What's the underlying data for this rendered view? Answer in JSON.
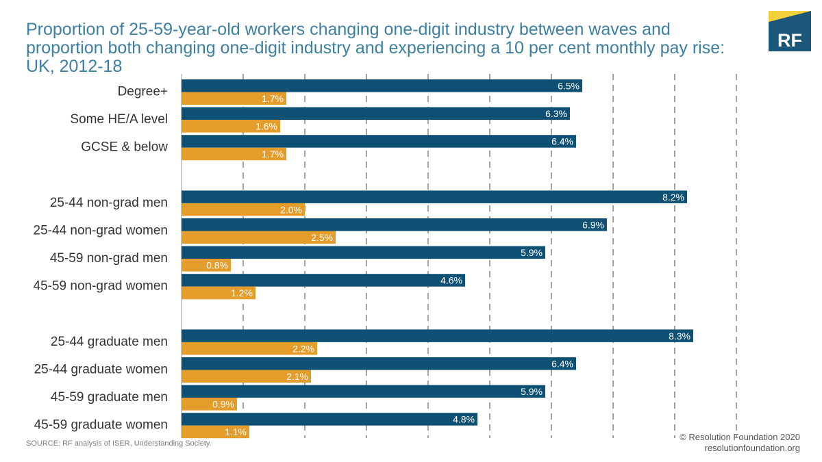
{
  "title_lines": [
    "Proportion of 25-59-year-old workers changing one-digit industry between waves and",
    "proportion both changing one-digit industry and experiencing a 10 per cent monthly pay rise:",
    "UK, 2012-18"
  ],
  "logo": {
    "text": "RF",
    "colors": {
      "teal": "#1b5778",
      "yellow": "#f2d03b"
    }
  },
  "source": "SOURCE: RF analysis of ISER, Understanding Society.",
  "credit": [
    "© Resolution Foundation 2020",
    "resolutionfoundation.org"
  ],
  "colors": {
    "title": "#3b7fa3",
    "series_1": "#0f5174",
    "series_2": "#e49c2a",
    "grid": "#8c8c8c",
    "axis": "#bbbbbb"
  },
  "chart_data": {
    "type": "bar",
    "orientation": "horizontal",
    "categories": [
      "Degree+",
      "Some HE/A level",
      "GCSE & below",
      "25-44 non-grad men",
      "25-44 non-grad women",
      "45-59 non-grad men",
      "45-59 non-grad women",
      "25-44 graduate men",
      "25-44 graduate women",
      "45-59 graduate men",
      "45-59 graduate women"
    ],
    "groups": [
      3,
      4,
      4
    ],
    "series": [
      {
        "values": [
          6.5,
          6.3,
          6.4,
          8.2,
          6.9,
          5.9,
          4.6,
          8.3,
          6.4,
          5.9,
          4.8
        ],
        "labels": [
          "6.5%",
          "6.3%",
          "6.4%",
          "8.2%",
          "6.9%",
          "5.9%",
          "4.6%",
          "8.3%",
          "6.4%",
          "5.9%",
          "4.8%"
        ]
      },
      {
        "values": [
          1.7,
          1.6,
          1.7,
          2.0,
          2.5,
          0.8,
          1.2,
          2.2,
          2.1,
          0.9,
          1.1
        ],
        "labels": [
          "1.7%",
          "1.6%",
          "1.7%",
          "2.0%",
          "2.5%",
          "0.8%",
          "1.2%",
          "2.2%",
          "2.1%",
          "0.9%",
          "1.1%"
        ]
      }
    ],
    "xlim": [
      0,
      9
    ],
    "grid": true,
    "legend": "none"
  }
}
